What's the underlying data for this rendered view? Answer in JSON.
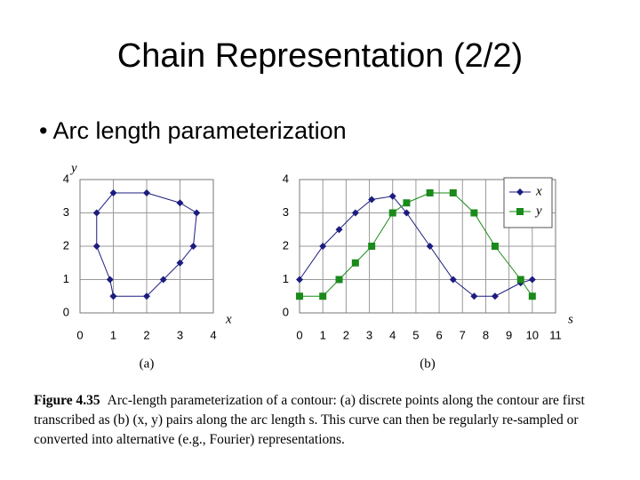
{
  "slide": {
    "title": "Chain Representation (2/2)",
    "bullet": "Arc length parameterization"
  },
  "chart_data": [
    {
      "type": "line",
      "xlabel": "x",
      "ylabel": "y",
      "sublabel": "(a)",
      "x": [
        1,
        2,
        2.5,
        3,
        3.4,
        3.5,
        3,
        2,
        1,
        0.5,
        0.5,
        0.9,
        1
      ],
      "series": [
        {
          "color": "#1c1c80",
          "marker": "diamond",
          "values": [
            0.5,
            0.5,
            1,
            1.5,
            2,
            3,
            3.3,
            3.6,
            3.6,
            3,
            2,
            1,
            0.5
          ]
        }
      ],
      "xlim": [
        0,
        4
      ],
      "ylim": [
        0,
        4
      ],
      "xticks": [
        0,
        1,
        2,
        3,
        4
      ],
      "yticks": [
        0,
        1,
        2,
        3,
        4
      ],
      "grid": true
    },
    {
      "type": "line",
      "xlabel": "s",
      "sublabel": "(b)",
      "x": [
        0,
        1,
        1.7,
        2.4,
        3.1,
        4,
        4.6,
        5.6,
        6.6,
        7.5,
        8.4,
        9.5,
        10
      ],
      "series": [
        {
          "name": "x",
          "color": "#1c1c80",
          "marker": "diamond",
          "values": [
            1,
            2,
            2.5,
            3,
            3.4,
            3.5,
            3,
            2,
            1,
            0.5,
            0.5,
            0.9,
            1
          ]
        },
        {
          "name": "y",
          "color": "#1a8a1a",
          "marker": "square",
          "values": [
            0.5,
            0.5,
            1,
            1.5,
            2,
            3,
            3.3,
            3.6,
            3.6,
            3,
            2,
            1,
            0.5
          ]
        }
      ],
      "xlim": [
        0,
        11
      ],
      "ylim": [
        0,
        4
      ],
      "xticks": [
        0,
        1,
        2,
        3,
        4,
        5,
        6,
        7,
        8,
        9,
        10,
        11
      ],
      "yticks": [
        0,
        1,
        2,
        3,
        4
      ],
      "grid": true,
      "legend": "upper right"
    }
  ],
  "caption": {
    "label": "Figure 4.35",
    "text": "Arc-length parameterization of a contour: (a) discrete points along the contour are first transcribed as (b) (x, y) pairs along the arc length s. This curve can then be regularly re-sampled or converted into alternative (e.g., Fourier) representations."
  }
}
